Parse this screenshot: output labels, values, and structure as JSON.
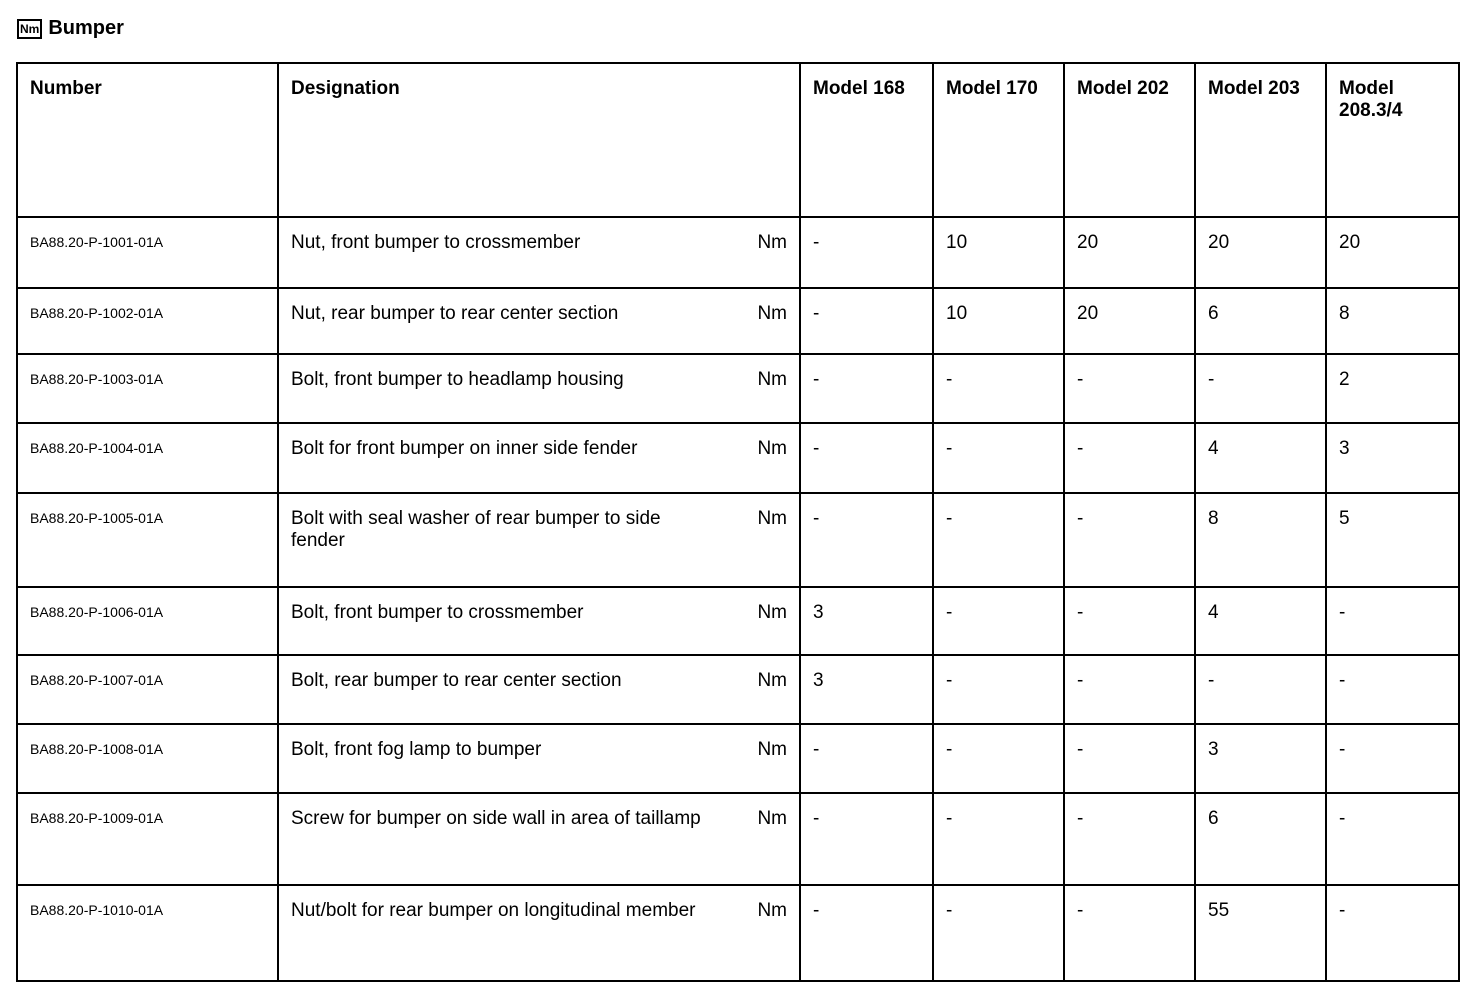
{
  "title": {
    "icon": "Nm",
    "text": "Bumper"
  },
  "columns": [
    "Number",
    "Designation",
    "Model 168",
    "Model 170",
    "Model 202",
    "Model 203",
    "Model 208.3/4"
  ],
  "rows": [
    {
      "number": "BA88.20-P-1001-01A",
      "designation": "Nut, front bumper to crossmember",
      "unit": "Nm",
      "values": [
        "-",
        "10",
        "20",
        "20",
        "20"
      ]
    },
    {
      "number": "BA88.20-P-1002-01A",
      "designation": "Nut, rear bumper to rear center section",
      "unit": "Nm",
      "values": [
        "-",
        "10",
        "20",
        "6",
        "8"
      ]
    },
    {
      "number": "BA88.20-P-1003-01A",
      "designation": "Bolt, front bumper to headlamp housing",
      "unit": "Nm",
      "values": [
        "-",
        "-",
        "-",
        "-",
        "2"
      ]
    },
    {
      "number": "BA88.20-P-1004-01A",
      "designation": "Bolt for front bumper on inner side fender",
      "unit": "Nm",
      "values": [
        "-",
        "-",
        "-",
        "4",
        "3"
      ]
    },
    {
      "number": "BA88.20-P-1005-01A",
      "designation": "Bolt with seal washer of rear bumper to side fender",
      "unit": "Nm",
      "values": [
        "-",
        "-",
        "-",
        "8",
        "5"
      ]
    },
    {
      "number": "BA88.20-P-1006-01A",
      "designation": "Bolt, front bumper to crossmember",
      "unit": "Nm",
      "values": [
        "3",
        "-",
        "-",
        "4",
        "-"
      ]
    },
    {
      "number": "BA88.20-P-1007-01A",
      "designation": "Bolt, rear bumper to rear center section",
      "unit": "Nm",
      "values": [
        "3",
        "-",
        "-",
        "-",
        "-"
      ]
    },
    {
      "number": "BA88.20-P-1008-01A",
      "designation": "Bolt, front fog lamp to bumper",
      "unit": "Nm",
      "values": [
        "-",
        "-",
        "-",
        "3",
        "-"
      ]
    },
    {
      "number": "BA88.20-P-1009-01A",
      "designation": "Screw for bumper on side wall in area of taillamp",
      "unit": "Nm",
      "values": [
        "-",
        "-",
        "-",
        "6",
        "-"
      ]
    },
    {
      "number": "BA88.20-P-1010-01A",
      "designation": "Nut/bolt for rear bumper on longitudinal member",
      "unit": "Nm",
      "values": [
        "-",
        "-",
        "-",
        "55",
        "-"
      ]
    }
  ]
}
